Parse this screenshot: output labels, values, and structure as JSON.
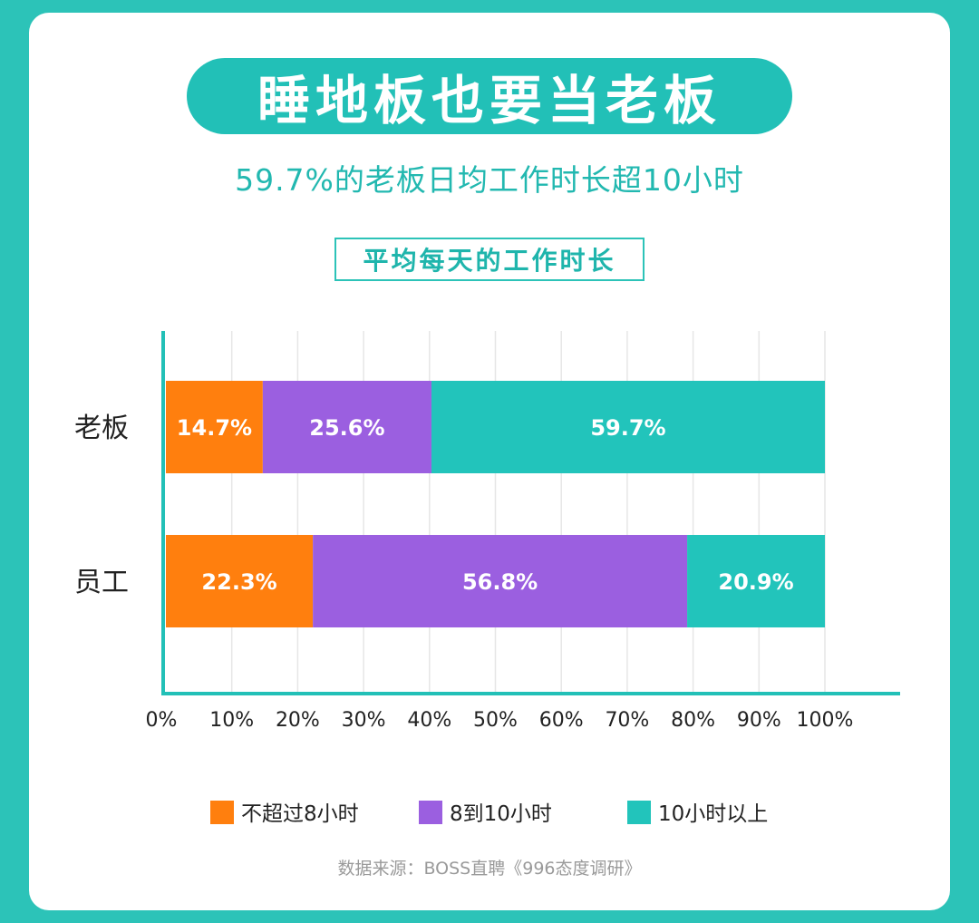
{
  "title": "睡地板也要当老板",
  "subtitle": "59.7%的老板日均工作时长超10小时",
  "source": "数据来源：BOSS直聘《996态度调研》",
  "chart_data": {
    "type": "bar",
    "orientation": "horizontal",
    "stacked": true,
    "title": "平均每天的工作时长",
    "categories": [
      "老板",
      "员工"
    ],
    "series": [
      {
        "name": "不超过8小时",
        "values": [
          14.7,
          22.3
        ],
        "color": "#ff7f0e"
      },
      {
        "name": "8到10小时",
        "values": [
          25.6,
          56.8
        ],
        "color": "#9b5fe0"
      },
      {
        "name": "10小时以上",
        "values": [
          59.7,
          20.9
        ],
        "color": "#22c4bb"
      }
    ],
    "xlim": [
      0,
      100
    ],
    "xticks": [
      "0%",
      "10%",
      "20%",
      "30%",
      "40%",
      "50%",
      "60%",
      "70%",
      "80%",
      "90%",
      "100%"
    ],
    "grid": true,
    "legend": "bottom"
  }
}
